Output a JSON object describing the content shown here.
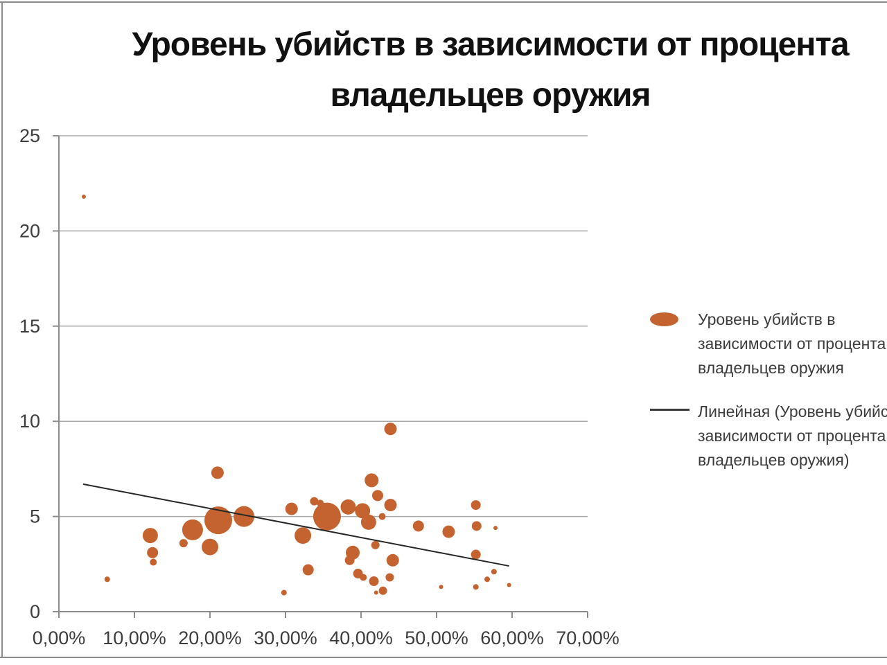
{
  "title": {
    "line1": "Уровень убийств в зависимости от процента",
    "line2": "владельцев оружия"
  },
  "legend": {
    "items": [
      {
        "marker": "bubble-ellipse",
        "lines": [
          "Уровень убийств в",
          "зависимости от процента",
          "владельцев оружия"
        ]
      },
      {
        "marker": "trend-line",
        "lines": [
          "Линейная (Уровень убийств в",
          "зависимости от процента",
          "владельцев оружия)"
        ]
      }
    ]
  },
  "colors": {
    "bubble": "#c4632f",
    "gridline": "#a8a8a8",
    "axis": "#8c8c8c",
    "trendline": "#262626",
    "label_text": "#3c3c3c",
    "title_text": "#111111",
    "frame_border": "#8c8c8c",
    "background": "#ffffff"
  },
  "chart_data": {
    "type": "scatter",
    "subtype": "bubble",
    "title": "Уровень убийств в зависимости от процента владельцев оружия",
    "xlabel": "",
    "ylabel": "",
    "x_unit": "percent of gun owners",
    "y_unit": "murder rate",
    "xlim": [
      0,
      70
    ],
    "ylim": [
      0,
      25
    ],
    "grid": "horizontal",
    "legend_position": "right",
    "x_ticks": {
      "values": [
        0,
        10,
        20,
        30,
        40,
        50,
        60,
        70
      ],
      "labels": [
        "0,00%",
        "10,00%",
        "20,00%",
        "30,00%",
        "40,00%",
        "50,00%",
        "60,00%",
        "70,00%"
      ]
    },
    "y_ticks": {
      "values": [
        0,
        5,
        10,
        15,
        20,
        25
      ],
      "labels": [
        "0",
        "5",
        "10",
        "15",
        "20",
        "25"
      ]
    },
    "series": [
      {
        "name": "Уровень убийств в зависимости от процента владельцев оружия",
        "type": "bubble",
        "points": [
          {
            "x": 3.3,
            "y": 21.8,
            "r": 3
          },
          {
            "x": 6.4,
            "y": 1.7,
            "r": 4
          },
          {
            "x": 12.1,
            "y": 4.0,
            "r": 11
          },
          {
            "x": 12.4,
            "y": 3.1,
            "r": 8
          },
          {
            "x": 12.5,
            "y": 2.6,
            "r": 5
          },
          {
            "x": 16.5,
            "y": 3.6,
            "r": 6
          },
          {
            "x": 17.7,
            "y": 4.3,
            "r": 15
          },
          {
            "x": 20.0,
            "y": 3.4,
            "r": 12
          },
          {
            "x": 21.0,
            "y": 7.3,
            "r": 9
          },
          {
            "x": 21.1,
            "y": 4.8,
            "r": 20
          },
          {
            "x": 24.5,
            "y": 5.0,
            "r": 15
          },
          {
            "x": 29.8,
            "y": 1.0,
            "r": 4
          },
          {
            "x": 30.8,
            "y": 5.4,
            "r": 9
          },
          {
            "x": 32.3,
            "y": 4.0,
            "r": 12
          },
          {
            "x": 33.0,
            "y": 2.2,
            "r": 8
          },
          {
            "x": 33.8,
            "y": 5.8,
            "r": 6
          },
          {
            "x": 34.6,
            "y": 5.7,
            "r": 5
          },
          {
            "x": 35.5,
            "y": 5.0,
            "r": 20
          },
          {
            "x": 38.3,
            "y": 5.5,
            "r": 11
          },
          {
            "x": 38.5,
            "y": 2.7,
            "r": 7
          },
          {
            "x": 38.9,
            "y": 3.1,
            "r": 10
          },
          {
            "x": 39.6,
            "y": 2.0,
            "r": 7
          },
          {
            "x": 40.2,
            "y": 5.3,
            "r": 11
          },
          {
            "x": 40.3,
            "y": 1.8,
            "r": 5
          },
          {
            "x": 41.0,
            "y": 4.7,
            "r": 11
          },
          {
            "x": 41.4,
            "y": 6.9,
            "r": 10
          },
          {
            "x": 41.7,
            "y": 1.6,
            "r": 7
          },
          {
            "x": 41.9,
            "y": 3.5,
            "r": 6
          },
          {
            "x": 42.0,
            "y": 1.0,
            "r": 3
          },
          {
            "x": 42.2,
            "y": 6.1,
            "r": 8
          },
          {
            "x": 42.8,
            "y": 5.0,
            "r": 5
          },
          {
            "x": 42.9,
            "y": 1.1,
            "r": 6
          },
          {
            "x": 43.8,
            "y": 1.8,
            "r": 6
          },
          {
            "x": 43.9,
            "y": 9.6,
            "r": 9
          },
          {
            "x": 43.9,
            "y": 5.6,
            "r": 9
          },
          {
            "x": 44.2,
            "y": 2.7,
            "r": 9
          },
          {
            "x": 47.6,
            "y": 4.5,
            "r": 8
          },
          {
            "x": 50.6,
            "y": 1.3,
            "r": 3
          },
          {
            "x": 51.6,
            "y": 4.2,
            "r": 9
          },
          {
            "x": 55.2,
            "y": 5.6,
            "r": 7
          },
          {
            "x": 55.3,
            "y": 4.5,
            "r": 7
          },
          {
            "x": 55.2,
            "y": 3.0,
            "r": 7
          },
          {
            "x": 55.2,
            "y": 1.3,
            "r": 4
          },
          {
            "x": 56.7,
            "y": 1.7,
            "r": 4
          },
          {
            "x": 57.6,
            "y": 2.1,
            "r": 4
          },
          {
            "x": 57.8,
            "y": 4.4,
            "r": 3
          },
          {
            "x": 59.6,
            "y": 1.4,
            "r": 3
          }
        ]
      },
      {
        "name": "Линейная (Уровень убийств в зависимости от процента владельцев оружия)",
        "type": "trendline",
        "x1": 3.2,
        "y1": 6.7,
        "x2": 59.6,
        "y2": 2.4
      }
    ]
  }
}
